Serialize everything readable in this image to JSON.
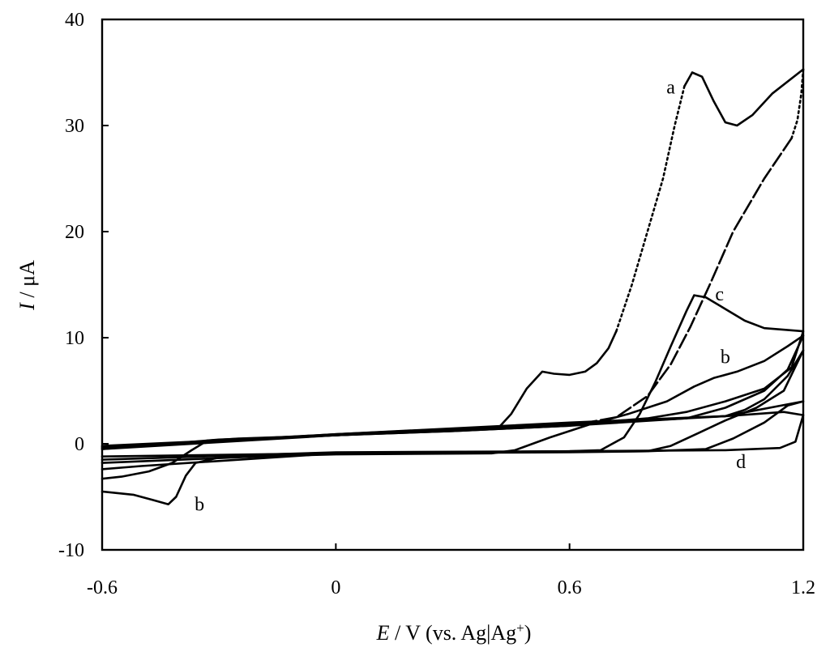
{
  "chart_data": {
    "type": "line",
    "xlabel": {
      "var": "E",
      "rest": " / V (vs. Ag|Ag",
      "sup": "+",
      "close": ")"
    },
    "ylabel": {
      "var": "I",
      "rest": " / μA"
    },
    "xlim": [
      -0.6,
      1.2
    ],
    "ylim": [
      -10,
      40
    ],
    "x_ticks": [
      {
        "value": -0.6,
        "label": "-0.6"
      },
      {
        "value": 0,
        "label": "0"
      },
      {
        "value": 0.6,
        "label": "0.6"
      },
      {
        "value": 1.2,
        "label": "1.2"
      }
    ],
    "y_ticks": [
      {
        "value": 40,
        "label": "40"
      },
      {
        "value": 30,
        "label": "30"
      },
      {
        "value": 20,
        "label": "20"
      },
      {
        "value": 10,
        "label": "10"
      },
      {
        "value": 0,
        "label": "0"
      },
      {
        "value": -10,
        "label": "-10"
      }
    ],
    "grid": false,
    "series": [
      {
        "name": "a",
        "segments": [
          {
            "style": "solid",
            "points": [
              [
                -0.6,
                -0.5
              ],
              [
                0.0,
                0.8
              ],
              [
                0.3,
                1.3
              ],
              [
                0.42,
                1.6
              ],
              [
                0.45,
                2.8
              ],
              [
                0.49,
                5.2
              ],
              [
                0.53,
                6.8
              ],
              [
                0.56,
                6.6
              ],
              [
                0.6,
                6.5
              ],
              [
                0.64,
                6.8
              ],
              [
                0.67,
                7.6
              ],
              [
                0.7,
                9.0
              ],
              [
                0.72,
                10.6
              ]
            ]
          },
          {
            "style": "dotted",
            "points": [
              [
                0.72,
                10.6
              ],
              [
                0.76,
                15.0
              ],
              [
                0.8,
                20.0
              ],
              [
                0.84,
                25.0
              ],
              [
                0.87,
                30.0
              ],
              [
                0.895,
                33.7
              ]
            ]
          },
          {
            "style": "solid",
            "points": [
              [
                0.895,
                33.7
              ],
              [
                0.915,
                35.0
              ],
              [
                0.94,
                34.6
              ],
              [
                0.97,
                32.3
              ],
              [
                1.0,
                30.3
              ],
              [
                1.03,
                30.0
              ],
              [
                1.07,
                31.0
              ],
              [
                1.12,
                33.0
              ],
              [
                1.2,
                35.3
              ]
            ]
          },
          {
            "style": "dotted",
            "points": [
              [
                1.2,
                35.3
              ],
              [
                1.195,
                33.0
              ],
              [
                1.185,
                30.5
              ],
              [
                1.17,
                28.8
              ]
            ]
          },
          {
            "style": "dashed",
            "points": [
              [
                1.17,
                28.8
              ],
              [
                1.1,
                25.0
              ],
              [
                1.02,
                20.0
              ],
              [
                0.96,
                15.0
              ],
              [
                0.91,
                11.0
              ],
              [
                0.86,
                7.5
              ],
              [
                0.8,
                4.5
              ],
              [
                0.72,
                2.5
              ],
              [
                0.6,
                1.7
              ]
            ]
          },
          {
            "style": "solid",
            "points": [
              [
                0.6,
                1.7
              ],
              [
                0.3,
                1.2
              ],
              [
                0.0,
                0.8
              ],
              [
                -0.3,
                0.4
              ],
              [
                -0.6,
                -0.5
              ]
            ]
          }
        ]
      },
      {
        "name": "b",
        "segments": [
          {
            "style": "solid",
            "points": [
              [
                -0.6,
                -4.5
              ],
              [
                -0.52,
                -4.8
              ],
              [
                -0.47,
                -5.3
              ],
              [
                -0.43,
                -5.7
              ],
              [
                -0.41,
                -5.0
              ],
              [
                -0.385,
                -3.0
              ],
              [
                -0.36,
                -1.8
              ],
              [
                -0.3,
                -1.3
              ],
              [
                0.0,
                -1.0
              ],
              [
                0.4,
                -0.9
              ],
              [
                0.46,
                -0.6
              ],
              [
                0.55,
                0.6
              ],
              [
                0.65,
                1.8
              ],
              [
                0.75,
                2.8
              ],
              [
                0.85,
                4.0
              ],
              [
                0.92,
                5.4
              ],
              [
                0.97,
                6.2
              ],
              [
                1.03,
                6.8
              ],
              [
                1.1,
                7.8
              ],
              [
                1.16,
                9.2
              ],
              [
                1.2,
                10.2
              ],
              [
                1.16,
                7.0
              ],
              [
                1.1,
                5.0
              ],
              [
                1.0,
                3.4
              ],
              [
                0.9,
                2.4
              ],
              [
                0.6,
                1.7
              ],
              [
                0.3,
                1.2
              ],
              [
                0.0,
                0.8
              ],
              [
                -0.25,
                0.5
              ],
              [
                -0.33,
                0.3
              ],
              [
                -0.37,
                -0.6
              ],
              [
                -0.42,
                -1.8
              ],
              [
                -0.48,
                -2.6
              ],
              [
                -0.55,
                -3.1
              ],
              [
                -0.6,
                -3.3
              ]
            ]
          }
        ]
      },
      {
        "name": "c",
        "segments": [
          {
            "style": "solid",
            "points": [
              [
                -0.6,
                -1.5
              ],
              [
                0.0,
                -0.8
              ],
              [
                0.6,
                -0.7
              ],
              [
                0.68,
                -0.6
              ],
              [
                0.74,
                0.6
              ],
              [
                0.78,
                2.8
              ],
              [
                0.82,
                5.8
              ],
              [
                0.86,
                9.2
              ],
              [
                0.9,
                12.5
              ],
              [
                0.92,
                14.0
              ],
              [
                0.95,
                13.8
              ],
              [
                1.0,
                12.7
              ],
              [
                1.05,
                11.6
              ],
              [
                1.1,
                10.9
              ],
              [
                1.2,
                10.6
              ],
              [
                1.17,
                7.2
              ],
              [
                1.1,
                5.2
              ],
              [
                1.0,
                4.0
              ],
              [
                0.9,
                3.0
              ],
              [
                0.8,
                2.4
              ],
              [
                0.6,
                1.8
              ],
              [
                0.0,
                0.8
              ],
              [
                -0.6,
                -0.2
              ]
            ]
          }
        ]
      },
      {
        "name": "d",
        "segments": [
          {
            "style": "solid",
            "points": [
              [
                -0.6,
                -1.2
              ],
              [
                0.0,
                -0.9
              ],
              [
                0.6,
                -0.7
              ],
              [
                1.0,
                -0.6
              ],
              [
                1.14,
                -0.4
              ],
              [
                1.18,
                0.2
              ],
              [
                1.2,
                2.7
              ],
              [
                1.15,
                3.0
              ],
              [
                1.0,
                2.6
              ],
              [
                0.6,
                2.0
              ],
              [
                0.0,
                0.9
              ],
              [
                -0.6,
                -0.4
              ]
            ]
          }
        ]
      },
      {
        "segments": [
          {
            "style": "solid",
            "points": [
              [
                -0.6,
                -2.4
              ],
              [
                -0.5,
                -2.1
              ],
              [
                0.0,
                -0.9
              ],
              [
                0.6,
                -0.8
              ],
              [
                0.8,
                -0.7
              ],
              [
                0.86,
                -0.2
              ],
              [
                0.93,
                1.0
              ],
              [
                1.0,
                2.2
              ],
              [
                1.08,
                3.4
              ],
              [
                1.15,
                5.0
              ],
              [
                1.2,
                8.8
              ],
              [
                1.16,
                6.4
              ],
              [
                1.1,
                4.2
              ],
              [
                1.05,
                3.2
              ],
              [
                1.0,
                2.6
              ],
              [
                0.6,
                1.8
              ],
              [
                0.0,
                0.8
              ],
              [
                -0.6,
                -0.3
              ]
            ]
          },
          {
            "style": "solid",
            "points": [
              [
                -0.6,
                -1.8
              ],
              [
                0.0,
                -0.9
              ],
              [
                0.8,
                -0.7
              ],
              [
                0.95,
                -0.5
              ],
              [
                1.02,
                0.5
              ],
              [
                1.1,
                2.0
              ],
              [
                1.16,
                3.6
              ],
              [
                1.2,
                4.0
              ],
              [
                1.0,
                2.6
              ],
              [
                0.0,
                0.9
              ],
              [
                -0.6,
                -0.3
              ]
            ]
          }
        ]
      }
    ],
    "annotations": [
      {
        "text": "a",
        "x": 0.86,
        "y": 33.0
      },
      {
        "text": "c",
        "x": 0.985,
        "y": 13.5
      },
      {
        "text": "b",
        "x": 1.0,
        "y": 7.6
      },
      {
        "text": "d",
        "x": 1.04,
        "y": -2.3
      },
      {
        "text": "b",
        "x": -0.35,
        "y": -6.3
      }
    ]
  }
}
